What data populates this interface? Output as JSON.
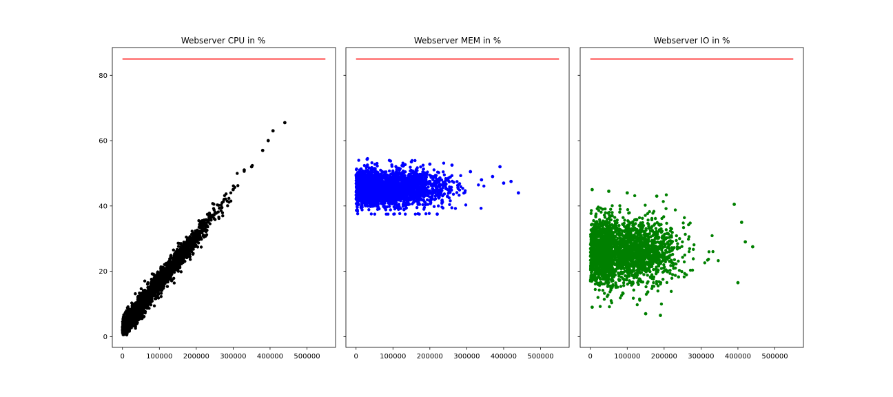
{
  "chart_data": [
    {
      "type": "scatter",
      "title": "Webserver CPU in %",
      "color": "#000000",
      "xlim": [
        -27500,
        577500
      ],
      "ylim": [
        -3.3,
        88.5
      ],
      "xticks": [
        0,
        100000,
        200000,
        300000,
        400000,
        500000
      ],
      "xtick_labels": [
        "0",
        "100000",
        "200000",
        "300000",
        "400000",
        "500000"
      ],
      "yticks": [
        0,
        20,
        40,
        60,
        80
      ],
      "ytick_labels": [
        "0",
        "20",
        "40",
        "60",
        "80"
      ],
      "show_ytick_labels": true,
      "threshold": {
        "y": 85,
        "x": [
          0,
          550000
        ],
        "color": "#ff0000"
      },
      "scatter_model": {
        "kind": "linear",
        "slope": 0.00014,
        "intercept": 2.5,
        "noise": 1.6,
        "x_center": 100000,
        "x_spread": 70000,
        "x_max": 420000
      },
      "points": [
        [
          5000,
          3.2
        ],
        [
          20000,
          5.6
        ],
        [
          60000,
          11.2
        ],
        [
          120000,
          19.3
        ],
        [
          180000,
          27.6
        ],
        [
          240000,
          35.7
        ],
        [
          300000,
          45.0
        ],
        [
          330000,
          51.0
        ],
        [
          350000,
          52.0
        ],
        [
          380000,
          57.0
        ],
        [
          395000,
          60.0
        ],
        [
          408000,
          63.0
        ],
        [
          440000,
          65.5
        ]
      ]
    },
    {
      "type": "scatter",
      "title": "Webserver MEM in %",
      "color": "#0000ff",
      "xlim": [
        -27500,
        577500
      ],
      "ylim": [
        -3.3,
        88.5
      ],
      "xticks": [
        0,
        100000,
        200000,
        300000,
        400000,
        500000
      ],
      "xtick_labels": [
        "0",
        "100000",
        "200000",
        "300000",
        "400000",
        "500000"
      ],
      "yticks": [
        0,
        20,
        40,
        60,
        80
      ],
      "show_ytick_labels": false,
      "threshold": {
        "y": 85,
        "x": [
          0,
          550000
        ],
        "color": "#ff0000"
      },
      "scatter_model": {
        "kind": "band",
        "center": 45.5,
        "noise": 2.8,
        "ymin": 37.5,
        "ymax": 54.5,
        "x_center": 100000,
        "x_spread": 70000,
        "x_max": 420000
      },
      "points": [
        [
          30000,
          54.3
        ],
        [
          150000,
          53.5
        ],
        [
          200000,
          52.8
        ],
        [
          260000,
          52.5
        ],
        [
          310000,
          50.5
        ],
        [
          340000,
          48.0
        ],
        [
          370000,
          49.0
        ],
        [
          390000,
          52.0
        ],
        [
          400000,
          47.0
        ],
        [
          420000,
          47.5
        ],
        [
          440000,
          44.0
        ],
        [
          220000,
          37.5
        ]
      ]
    },
    {
      "type": "scatter",
      "title": "Webserver IO in %",
      "color": "#008000",
      "xlim": [
        -27500,
        577500
      ],
      "ylim": [
        -3.3,
        88.5
      ],
      "xticks": [
        0,
        100000,
        200000,
        300000,
        400000,
        500000
      ],
      "xtick_labels": [
        "0",
        "100000",
        "200000",
        "300000",
        "400000",
        "500000"
      ],
      "yticks": [
        0,
        20,
        40,
        60,
        80
      ],
      "show_ytick_labels": false,
      "threshold": {
        "y": 85,
        "x": [
          0,
          550000
        ],
        "color": "#ff0000"
      },
      "scatter_model": {
        "kind": "band",
        "center": 26.0,
        "noise": 5.0,
        "ymin": 9.0,
        "ymax": 45.5,
        "x_center": 100000,
        "x_spread": 70000,
        "x_max": 420000
      },
      "points": [
        [
          5000,
          45.0
        ],
        [
          50000,
          44.5
        ],
        [
          100000,
          44.0
        ],
        [
          180000,
          43.0
        ],
        [
          390000,
          40.5
        ],
        [
          410000,
          35.0
        ],
        [
          420000,
          29.0
        ],
        [
          440000,
          27.5
        ],
        [
          400000,
          16.5
        ],
        [
          150000,
          7.0
        ],
        [
          190000,
          6.5
        ],
        [
          5000,
          9.0
        ]
      ]
    }
  ]
}
